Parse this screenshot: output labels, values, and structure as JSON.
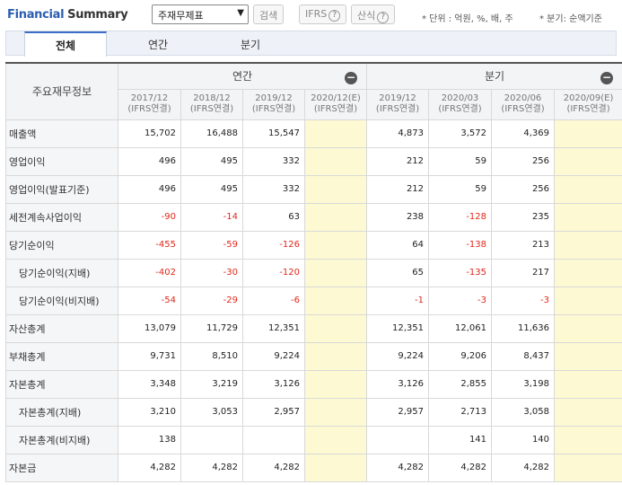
{
  "header": {
    "title_part1": "Financial",
    "title_part2": "Summary",
    "select_value": "주재무제표",
    "search_label": "검색",
    "ifrs_label": "IFRS",
    "formula_label": "산식",
    "help_glyph": "?",
    "unit_note": "* 단위 : 억원, %, 배, 주",
    "period_note": "* 분기: 순액기준"
  },
  "tabs": [
    {
      "label": "전체",
      "active": true
    },
    {
      "label": "연간",
      "active": false
    },
    {
      "label": "분기",
      "active": false
    }
  ],
  "table": {
    "item_header": "주요재무정보",
    "annual_header": "연간",
    "quarterly_header": "분기",
    "collapse_glyph": "−",
    "columns": [
      {
        "period": "2017/12",
        "basis": "(IFRS연결)"
      },
      {
        "period": "2018/12",
        "basis": "(IFRS연결)"
      },
      {
        "period": "2019/12",
        "basis": "(IFRS연결)"
      },
      {
        "period": "2020/12(E)",
        "basis": "(IFRS연결)"
      },
      {
        "period": "2019/12",
        "basis": "(IFRS연결)"
      },
      {
        "period": "2020/03",
        "basis": "(IFRS연결)"
      },
      {
        "period": "2020/06",
        "basis": "(IFRS연결)"
      },
      {
        "period": "2020/09(E)",
        "basis": "(IFRS연결)"
      }
    ],
    "rows": [
      {
        "label": "매출액",
        "indent": false,
        "values": [
          "15,702",
          "16,488",
          "15,547",
          "",
          "4,873",
          "3,572",
          "4,369",
          ""
        ]
      },
      {
        "label": "영업이익",
        "indent": false,
        "values": [
          "496",
          "495",
          "332",
          "",
          "212",
          "59",
          "256",
          ""
        ]
      },
      {
        "label": "영업이익(발표기준)",
        "indent": false,
        "values": [
          "496",
          "495",
          "332",
          "",
          "212",
          "59",
          "256",
          ""
        ]
      },
      {
        "label": "세전계속사업이익",
        "indent": false,
        "values": [
          "-90",
          "-14",
          "63",
          "",
          "238",
          "-128",
          "235",
          ""
        ]
      },
      {
        "label": "당기순이익",
        "indent": false,
        "values": [
          "-455",
          "-59",
          "-126",
          "",
          "64",
          "-138",
          "213",
          ""
        ]
      },
      {
        "label": "당기순이익(지배)",
        "indent": true,
        "values": [
          "-402",
          "-30",
          "-120",
          "",
          "65",
          "-135",
          "217",
          ""
        ]
      },
      {
        "label": "당기순이익(비지배)",
        "indent": true,
        "values": [
          "-54",
          "-29",
          "-6",
          "",
          "-1",
          "-3",
          "-3",
          ""
        ]
      },
      {
        "label": "자산총계",
        "indent": false,
        "values": [
          "13,079",
          "11,729",
          "12,351",
          "",
          "12,351",
          "12,061",
          "11,636",
          ""
        ]
      },
      {
        "label": "부채총계",
        "indent": false,
        "values": [
          "9,731",
          "8,510",
          "9,224",
          "",
          "9,224",
          "9,206",
          "8,437",
          ""
        ]
      },
      {
        "label": "자본총계",
        "indent": false,
        "values": [
          "3,348",
          "3,219",
          "3,126",
          "",
          "3,126",
          "2,855",
          "3,198",
          ""
        ]
      },
      {
        "label": "자본총계(지배)",
        "indent": true,
        "values": [
          "3,210",
          "3,053",
          "2,957",
          "",
          "2,957",
          "2,713",
          "3,058",
          ""
        ]
      },
      {
        "label": "자본총계(비지배)",
        "indent": true,
        "values": [
          "138",
          "",
          "",
          "",
          "",
          "141",
          "140",
          ""
        ]
      },
      {
        "label": "자본금",
        "indent": false,
        "values": [
          "4,282",
          "4,282",
          "4,282",
          "",
          "4,282",
          "4,282",
          "4,282",
          ""
        ]
      }
    ]
  },
  "colors": {
    "accent": "#2a5db0",
    "negative": "#e0281c",
    "estimate_bg": "#fdf9d3"
  }
}
